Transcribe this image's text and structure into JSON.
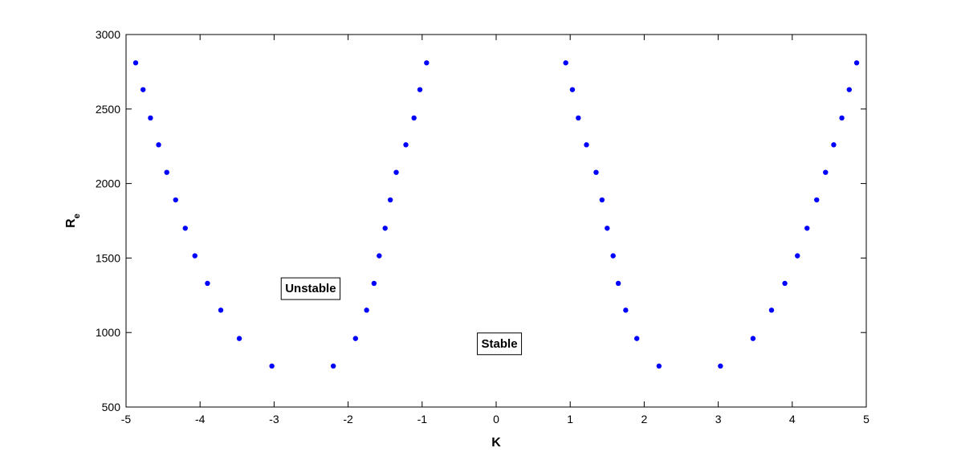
{
  "chart_data": {
    "type": "scatter",
    "xlabel": "K",
    "ylabel": "R",
    "ylabel_sub": "e",
    "xlim": [
      -5,
      5
    ],
    "ylim": [
      500,
      3000
    ],
    "xticks": [
      -5,
      -4,
      -3,
      -2,
      -1,
      0,
      1,
      2,
      3,
      4,
      5
    ],
    "yticks": [
      500,
      1000,
      1500,
      2000,
      2500,
      3000
    ],
    "grid": false,
    "marker_color": "#0000ff",
    "annotations": [
      {
        "text": "Unstable",
        "x": -2.85,
        "y": 1270
      },
      {
        "text": "Stable",
        "x": -0.2,
        "y": 900
      }
    ],
    "series": [
      {
        "x": [
          -4.87,
          -4.77,
          -4.67,
          -4.56,
          -4.45,
          -4.33,
          -4.2,
          -4.07,
          -3.9,
          -3.72,
          -3.47,
          -3.03,
          -2.2,
          -1.9,
          -1.75,
          -1.65,
          -1.58,
          -1.5,
          -1.43,
          -1.35,
          -1.22,
          -1.11,
          -1.03,
          -0.94,
          0.94,
          1.03,
          1.11,
          1.22,
          1.35,
          1.43,
          1.5,
          1.58,
          1.65,
          1.75,
          1.9,
          2.2,
          3.03,
          3.47,
          3.72,
          3.9,
          4.07,
          4.2,
          4.33,
          4.45,
          4.56,
          4.67,
          4.77,
          4.87
        ],
        "y": [
          2810,
          2630,
          2440,
          2260,
          2075,
          1890,
          1700,
          1515,
          1330,
          1150,
          960,
          775,
          775,
          960,
          1150,
          1330,
          1515,
          1700,
          1890,
          2075,
          2260,
          2440,
          2630,
          2810,
          2810,
          2630,
          2440,
          2260,
          2075,
          1890,
          1700,
          1515,
          1330,
          1150,
          960,
          775,
          775,
          960,
          1150,
          1330,
          1515,
          1700,
          1890,
          2075,
          2260,
          2440,
          2630,
          2810
        ]
      }
    ]
  }
}
